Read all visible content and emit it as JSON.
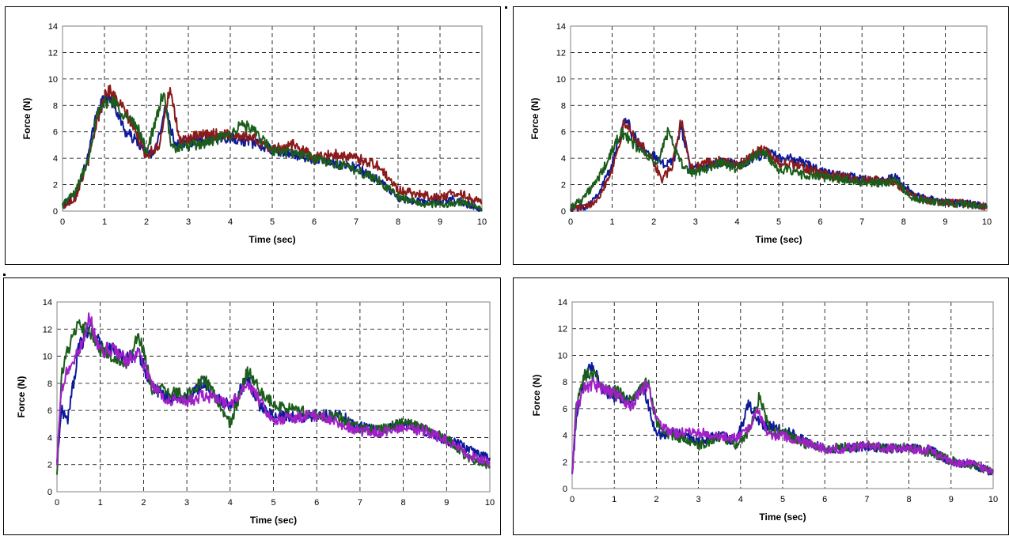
{
  "chart_data": [
    {
      "type": "line",
      "xlabel": "Time (sec)",
      "ylabel": "Force (N)",
      "xlim": [
        0,
        10
      ],
      "ylim": [
        0,
        14
      ],
      "xticks": [
        "0",
        "1",
        "2",
        "3",
        "4",
        "5",
        "6",
        "7",
        "8",
        "9",
        "10"
      ],
      "yticks": [
        "0",
        "2",
        "4",
        "6",
        "8",
        "10",
        "12",
        "14"
      ],
      "grid": true,
      "series": [
        {
          "color": "#0d1a9a",
          "x": [
            0,
            0.3,
            0.6,
            0.8,
            1.0,
            1.2,
            1.5,
            1.8,
            2.0,
            2.2,
            2.45,
            2.7,
            3.0,
            3.5,
            4.0,
            4.5,
            5.0,
            5.5,
            6.0,
            6.5,
            7.0,
            7.5,
            8.0,
            8.5,
            9.0,
            9.3,
            9.6,
            10
          ],
          "y": [
            0.4,
            1.2,
            4.0,
            7.2,
            8.6,
            8.3,
            6.0,
            5.2,
            4.3,
            4.4,
            7.9,
            5.0,
            5.2,
            5.5,
            5.6,
            5.2,
            4.6,
            4.3,
            3.9,
            3.6,
            3.3,
            2.4,
            1.0,
            0.7,
            0.7,
            0.9,
            0.6,
            0.1
          ]
        },
        {
          "color": "#8b1a1a",
          "x": [
            0,
            0.3,
            0.6,
            0.8,
            1.0,
            1.1,
            1.5,
            1.8,
            2.0,
            2.3,
            2.55,
            2.8,
            3.0,
            3.5,
            4.0,
            4.5,
            5.0,
            5.5,
            6.0,
            6.5,
            7.0,
            7.5,
            8.0,
            8.5,
            9.0,
            9.3,
            9.6,
            10
          ],
          "y": [
            0.3,
            1.0,
            3.6,
            6.5,
            8.7,
            9.2,
            7.5,
            5.6,
            4.2,
            5.0,
            9.2,
            5.3,
            5.5,
            5.8,
            5.8,
            5.6,
            4.7,
            5.0,
            4.1,
            4.3,
            4.0,
            3.5,
            1.6,
            1.3,
            1.0,
            1.4,
            1.2,
            0.6
          ]
        },
        {
          "color": "#1b5e1b",
          "x": [
            0,
            0.3,
            0.6,
            0.8,
            1.0,
            1.2,
            1.5,
            1.8,
            2.0,
            2.2,
            2.4,
            2.6,
            3.0,
            3.5,
            4.0,
            4.3,
            4.6,
            5.0,
            5.5,
            6.0,
            6.5,
            7.0,
            7.5,
            8.0,
            8.5,
            9.0,
            9.5,
            10
          ],
          "y": [
            0.5,
            1.4,
            3.8,
            7.0,
            8.2,
            8.4,
            7.2,
            6.3,
            4.5,
            6.5,
            9.0,
            4.8,
            4.9,
            5.2,
            5.8,
            6.6,
            5.9,
            4.6,
            4.4,
            4.0,
            3.6,
            3.1,
            2.4,
            1.1,
            0.6,
            0.5,
            0.7,
            0.2
          ]
        }
      ]
    },
    {
      "type": "line",
      "xlabel": "Time (sec)",
      "ylabel": "Force (N)",
      "xlim": [
        0,
        10
      ],
      "ylim": [
        0,
        14
      ],
      "xticks": [
        "0",
        "1",
        "2",
        "3",
        "4",
        "5",
        "6",
        "7",
        "8",
        "9",
        "10"
      ],
      "yticks": [
        "0",
        "2",
        "4",
        "6",
        "8",
        "10",
        "12",
        "14"
      ],
      "grid": true,
      "series": [
        {
          "color": "#0d1a9a",
          "x": [
            0,
            0.4,
            0.7,
            1.0,
            1.3,
            1.6,
            1.9,
            2.2,
            2.5,
            2.65,
            2.9,
            3.2,
            3.6,
            4.0,
            4.4,
            4.7,
            5.0,
            5.5,
            6.0,
            6.5,
            7.0,
            7.5,
            7.8,
            8.2,
            8.6,
            9.0,
            9.5,
            10
          ],
          "y": [
            0.2,
            0.4,
            1.5,
            3.5,
            7.1,
            5.2,
            4.5,
            3.5,
            4.0,
            6.5,
            3.1,
            3.3,
            3.7,
            3.5,
            4.0,
            4.4,
            4.1,
            3.8,
            3.0,
            2.7,
            2.4,
            2.3,
            2.5,
            1.3,
            0.9,
            0.7,
            0.6,
            0.3
          ]
        },
        {
          "color": "#8b1a1a",
          "x": [
            0,
            0.4,
            0.7,
            1.0,
            1.3,
            1.6,
            1.9,
            2.2,
            2.45,
            2.65,
            2.9,
            3.2,
            3.6,
            4.0,
            4.4,
            4.6,
            5.0,
            5.5,
            6.0,
            6.5,
            7.0,
            7.5,
            7.8,
            8.2,
            8.6,
            9.0,
            9.5,
            10
          ],
          "y": [
            0.2,
            0.3,
            1.2,
            3.2,
            6.7,
            5.3,
            4.2,
            2.4,
            3.4,
            6.9,
            3.2,
            3.6,
            3.8,
            3.4,
            4.3,
            4.7,
            3.7,
            3.4,
            2.8,
            2.6,
            2.3,
            2.3,
            2.2,
            1.1,
            0.8,
            0.6,
            0.6,
            0.3
          ]
        },
        {
          "color": "#1b5e1b",
          "x": [
            0,
            0.3,
            0.6,
            0.9,
            1.2,
            1.5,
            1.9,
            2.1,
            2.35,
            2.6,
            2.9,
            3.2,
            3.6,
            4.0,
            4.4,
            4.6,
            5.0,
            5.5,
            6.0,
            6.5,
            7.0,
            7.5,
            7.8,
            8.2,
            8.6,
            9.0,
            9.5,
            10
          ],
          "y": [
            0.3,
            1.0,
            2.1,
            3.8,
            6.0,
            5.1,
            4.0,
            3.6,
            6.2,
            3.8,
            2.9,
            3.1,
            3.7,
            3.2,
            4.1,
            4.5,
            3.2,
            2.8,
            2.6,
            2.4,
            2.2,
            2.1,
            2.4,
            1.0,
            0.7,
            0.6,
            0.5,
            0.2
          ]
        }
      ]
    },
    {
      "type": "line",
      "xlabel": "Time (sec)",
      "ylabel": "Force (N)",
      "xlim": [
        0,
        10
      ],
      "ylim": [
        0,
        14
      ],
      "xticks": [
        "0",
        "1",
        "2",
        "3",
        "4",
        "5",
        "6",
        "7",
        "8",
        "9",
        "10"
      ],
      "yticks": [
        "0",
        "2",
        "4",
        "6",
        "8",
        "10",
        "12",
        "14"
      ],
      "grid": true,
      "series": [
        {
          "color": "#0d1a9a",
          "x": [
            0,
            0.1,
            0.25,
            0.5,
            0.75,
            1.0,
            1.3,
            1.6,
            1.9,
            2.2,
            2.5,
            3.0,
            3.4,
            3.7,
            4.0,
            4.4,
            4.7,
            5.0,
            5.5,
            6.0,
            6.5,
            7.0,
            7.5,
            8.0,
            8.5,
            9.0,
            9.5,
            10
          ],
          "y": [
            2.2,
            6.0,
            5.4,
            10.5,
            12.2,
            10.8,
            10.4,
            9.8,
            10.2,
            7.6,
            7.0,
            6.9,
            8.1,
            6.9,
            6.3,
            8.3,
            6.3,
            5.6,
            5.5,
            5.6,
            5.7,
            4.8,
            4.5,
            5.0,
            4.5,
            3.8,
            3.2,
            2.5
          ]
        },
        {
          "color": "#1b5e1b",
          "x": [
            0,
            0.1,
            0.25,
            0.5,
            0.75,
            1.0,
            1.3,
            1.6,
            1.9,
            2.2,
            2.5,
            3.0,
            3.4,
            3.7,
            4.0,
            4.4,
            4.7,
            5.0,
            5.5,
            6.0,
            6.5,
            7.0,
            7.5,
            8.0,
            8.5,
            9.0,
            9.5,
            10
          ],
          "y": [
            1.3,
            8.5,
            10.5,
            12.3,
            11.8,
            10.5,
            10.0,
            9.5,
            11.5,
            7.5,
            7.5,
            7.0,
            8.4,
            6.7,
            4.9,
            8.9,
            7.4,
            6.5,
            6.0,
            5.7,
            5.5,
            4.7,
            4.6,
            5.1,
            4.6,
            3.9,
            2.5,
            1.9
          ]
        },
        {
          "color": "#a020c8",
          "x": [
            0,
            0.1,
            0.25,
            0.5,
            0.75,
            1.0,
            1.3,
            1.6,
            1.9,
            2.2,
            2.5,
            3.0,
            3.4,
            3.7,
            4.0,
            4.4,
            4.7,
            5.0,
            5.5,
            6.0,
            6.5,
            7.0,
            7.5,
            8.0,
            8.5,
            9.0,
            9.5,
            10
          ],
          "y": [
            2.0,
            7.5,
            9.0,
            10.2,
            12.9,
            10.3,
            10.6,
            9.7,
            10.3,
            7.8,
            6.9,
            6.6,
            7.1,
            6.9,
            6.3,
            8.1,
            6.6,
            5.3,
            5.5,
            5.6,
            5.1,
            4.5,
            4.4,
            4.7,
            4.5,
            3.8,
            2.7,
            2.2
          ]
        }
      ]
    },
    {
      "type": "line",
      "xlabel": "Time (sec)",
      "ylabel": "Force (N)",
      "xlim": [
        0,
        10
      ],
      "ylim": [
        0,
        14
      ],
      "xticks": [
        "0",
        "1",
        "2",
        "3",
        "4",
        "5",
        "6",
        "7",
        "8",
        "9",
        "10"
      ],
      "yticks": [
        "0",
        "2",
        "4",
        "6",
        "8",
        "10",
        "12",
        "14"
      ],
      "grid": true,
      "series": [
        {
          "color": "#0d1a9a",
          "x": [
            0,
            0.1,
            0.3,
            0.5,
            0.8,
            1.1,
            1.4,
            1.7,
            2.0,
            2.3,
            2.7,
            3.0,
            3.5,
            3.9,
            4.2,
            4.5,
            4.8,
            5.0,
            5.5,
            6.0,
            6.5,
            7.0,
            7.5,
            8.0,
            8.5,
            9.0,
            9.5,
            10
          ],
          "y": [
            0.9,
            5.5,
            8.5,
            9.2,
            7.0,
            6.8,
            6.5,
            7.5,
            4.0,
            4.2,
            4.0,
            3.5,
            4.0,
            3.5,
            6.4,
            4.8,
            4.6,
            4.5,
            3.6,
            3.0,
            3.0,
            3.2,
            3.0,
            3.0,
            2.9,
            2.0,
            1.8,
            1.2
          ]
        },
        {
          "color": "#1b5e1b",
          "x": [
            0,
            0.1,
            0.3,
            0.5,
            0.8,
            1.1,
            1.4,
            1.8,
            2.0,
            2.3,
            2.7,
            3.0,
            3.5,
            3.9,
            4.2,
            4.45,
            4.7,
            5.0,
            5.5,
            6.0,
            6.5,
            7.0,
            7.5,
            8.0,
            8.5,
            9.0,
            9.5,
            10
          ],
          "y": [
            1.0,
            6.5,
            8.6,
            8.5,
            7.5,
            7.2,
            6.5,
            8.0,
            5.0,
            4.0,
            3.7,
            3.2,
            3.9,
            3.3,
            4.3,
            7.0,
            4.2,
            4.3,
            3.4,
            3.0,
            3.1,
            3.2,
            3.0,
            3.1,
            2.7,
            2.1,
            1.7,
            1.3
          ]
        },
        {
          "color": "#a020c8",
          "x": [
            0,
            0.1,
            0.3,
            0.5,
            0.8,
            1.1,
            1.4,
            1.8,
            2.0,
            2.3,
            2.7,
            3.0,
            3.5,
            3.9,
            4.2,
            4.4,
            4.7,
            5.0,
            5.5,
            6.0,
            6.5,
            7.0,
            7.5,
            8.0,
            8.5,
            9.0,
            9.5,
            10
          ],
          "y": [
            0.9,
            6.0,
            7.6,
            7.8,
            7.4,
            6.9,
            6.2,
            7.9,
            5.2,
            4.2,
            4.2,
            4.2,
            4.0,
            3.8,
            4.5,
            5.8,
            4.0,
            4.0,
            3.5,
            3.0,
            3.0,
            3.3,
            3.0,
            3.0,
            2.9,
            2.0,
            1.9,
            1.2
          ]
        }
      ]
    }
  ]
}
